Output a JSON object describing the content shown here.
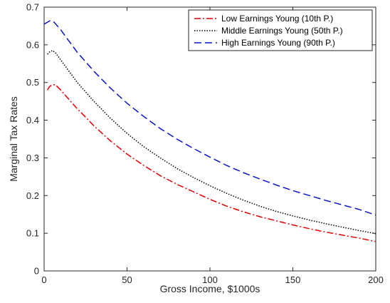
{
  "chart_data": {
    "type": "line",
    "xlabel": "Gross Income, $1000s",
    "ylabel": "Marginal Tax Rates",
    "xlim": [
      0,
      200
    ],
    "ylim": [
      0,
      0.7
    ],
    "xticks": [
      0,
      50,
      100,
      150,
      200
    ],
    "yticks": [
      0,
      0.1,
      0.2,
      0.3,
      0.4,
      0.5,
      0.6,
      0.7
    ],
    "grid": false,
    "legend_position": "top-right",
    "series": [
      {
        "name": "Low Earnings Young (10th P.)",
        "color": "#e00000",
        "dash": "dashdot",
        "x": [
          2,
          3,
          5,
          7,
          10,
          15,
          20,
          25,
          30,
          40,
          50,
          60,
          70,
          80,
          90,
          100,
          110,
          120,
          130,
          140,
          150,
          160,
          170,
          180,
          190,
          200
        ],
        "y": [
          0.48,
          0.488,
          0.495,
          0.493,
          0.48,
          0.455,
          0.43,
          0.408,
          0.385,
          0.345,
          0.31,
          0.28,
          0.253,
          0.23,
          0.21,
          0.19,
          0.172,
          0.157,
          0.144,
          0.133,
          0.122,
          0.112,
          0.103,
          0.095,
          0.087,
          0.078
        ]
      },
      {
        "name": "Middle Earnings Young (50th P.)",
        "color": "#000000",
        "dash": "dotted",
        "x": [
          2,
          3,
          5,
          7,
          10,
          15,
          20,
          25,
          30,
          40,
          50,
          60,
          70,
          80,
          90,
          100,
          110,
          120,
          130,
          140,
          150,
          160,
          170,
          180,
          190,
          200
        ],
        "y": [
          0.575,
          0.58,
          0.585,
          0.578,
          0.56,
          0.53,
          0.5,
          0.475,
          0.45,
          0.405,
          0.365,
          0.33,
          0.3,
          0.272,
          0.248,
          0.226,
          0.206,
          0.188,
          0.172,
          0.158,
          0.146,
          0.135,
          0.125,
          0.116,
          0.107,
          0.099
        ]
      },
      {
        "name": "High Earnings Young (90th P.)",
        "color": "#0a14c8",
        "dash": "dashed",
        "x": [
          0,
          2,
          4,
          6,
          10,
          15,
          20,
          25,
          30,
          40,
          50,
          60,
          70,
          80,
          90,
          100,
          110,
          120,
          130,
          140,
          150,
          160,
          170,
          180,
          190,
          200
        ],
        "y": [
          0.655,
          0.66,
          0.665,
          0.66,
          0.64,
          0.61,
          0.58,
          0.555,
          0.53,
          0.485,
          0.445,
          0.41,
          0.378,
          0.35,
          0.325,
          0.302,
          0.28,
          0.261,
          0.244,
          0.228,
          0.213,
          0.2,
          0.187,
          0.175,
          0.163,
          0.148
        ]
      }
    ]
  }
}
